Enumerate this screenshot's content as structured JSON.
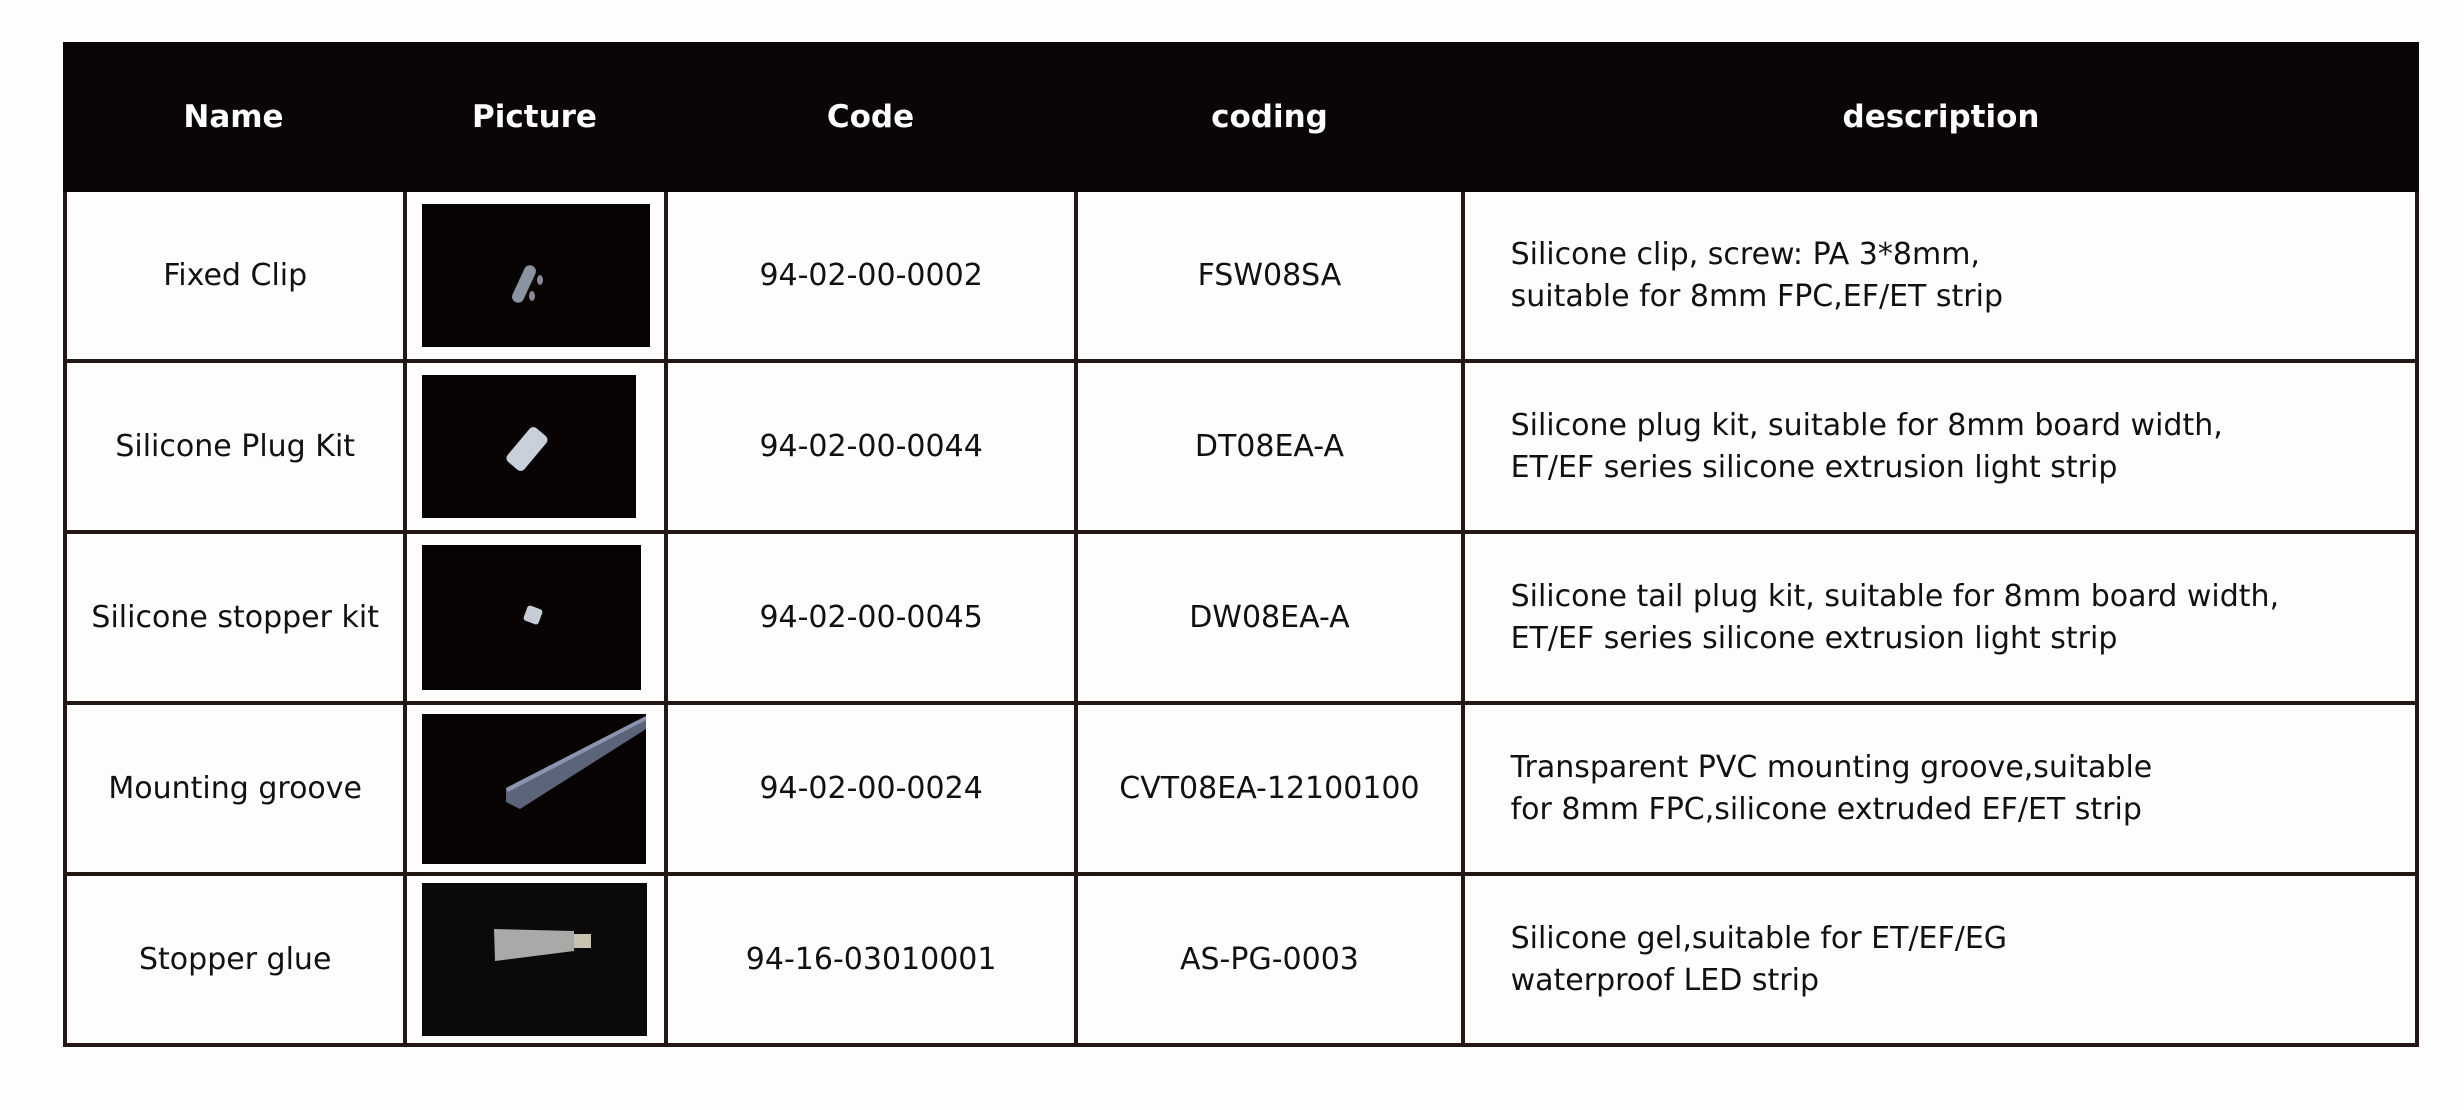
{
  "columns": [
    "Name",
    "Picture",
    "Code",
    "coding",
    "description"
  ],
  "rows": [
    {
      "name": "Fixed Clip",
      "picture": "silicone-clip-photo",
      "code": "94-02-00-0002",
      "coding": "FSW08SA",
      "description": [
        "Silicone clip, screw: PA 3*8mm,",
        "suitable for 8mm FPC,EF/ET strip"
      ]
    },
    {
      "name": "Silicone Plug Kit",
      "picture": "silicone-plug-photo",
      "code": "94-02-00-0044",
      "coding": "DT08EA-A",
      "description": [
        "Silicone plug kit, suitable for 8mm board width,",
        "ET/EF series silicone extrusion light strip"
      ]
    },
    {
      "name": "Silicone stopper kit",
      "picture": "silicone-stopper-photo",
      "code": "94-02-00-0045",
      "coding": "DW08EA-A",
      "description": [
        "Silicone tail plug kit, suitable for 8mm board width,",
        "ET/EF series silicone extrusion light strip"
      ]
    },
    {
      "name": "Mounting groove",
      "picture": "pvc-groove-photo",
      "code": "94-02-00-0024",
      "coding": "CVT08EA-12100100",
      "description": [
        "Transparent PVC mounting groove,suitable",
        "for 8mm FPC,silicone extruded EF/ET strip"
      ]
    },
    {
      "name": "Stopper glue",
      "picture": "glue-tube-photo",
      "code": "94-16-03010001",
      "coding": "AS-PG-0003",
      "description": [
        "Silicone gel,suitable for ET/EF/EG",
        "waterproof LED strip"
      ]
    }
  ],
  "colors": {
    "header_bg": "#0a0608",
    "border": "#231815",
    "photo_bg": "#070303"
  }
}
